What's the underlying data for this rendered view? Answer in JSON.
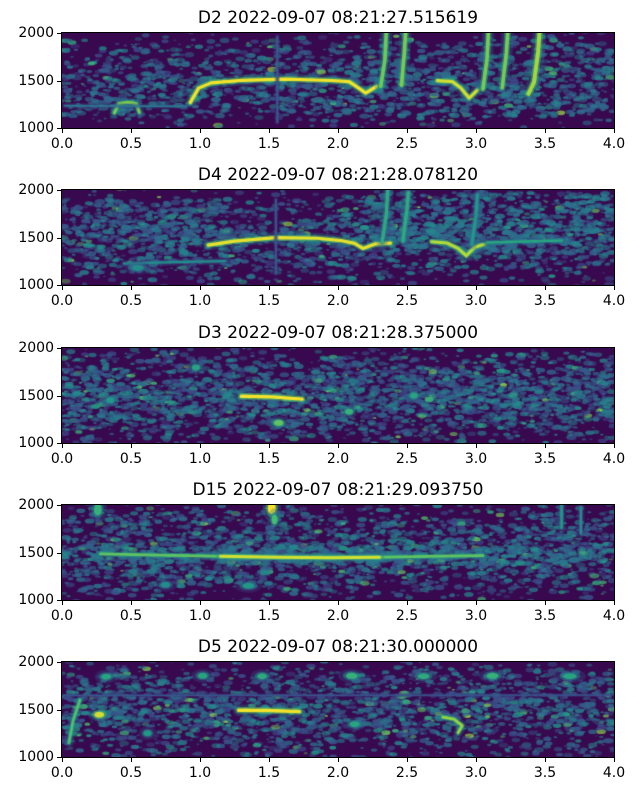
{
  "figure_title": "",
  "colors": {
    "background": "#38094f",
    "colormap": "viridis",
    "low": "#440154",
    "mid": "#21918c",
    "high": "#fde725",
    "axis": "#000000",
    "canvas": "#ffffff"
  },
  "chart_data": [
    {
      "type": "heatmap",
      "title": "D2 2022-09-07 08:21:27.515619",
      "xlabel": "",
      "ylabel": "",
      "xlim": [
        0,
        4
      ],
      "ylim": [
        1000,
        2000
      ],
      "x_ticks": [
        "0.0",
        "0.5",
        "1.0",
        "1.5",
        "2.0",
        "2.5",
        "3.0",
        "3.5",
        "4.0"
      ],
      "y_ticks": [
        "2000",
        "1500",
        "1000"
      ],
      "grid": false,
      "legend": "none",
      "noise": {
        "seed": 11,
        "density": 0.6,
        "regions": [
          {
            "x1": 0,
            "x2": 4,
            "f1": 1120,
            "f2": 1360,
            "n": 260,
            "i": 0.38
          },
          {
            "x1": 2.1,
            "x2": 4,
            "f1": 1350,
            "f2": 1900,
            "n": 150,
            "i": 0.36
          }
        ]
      },
      "features": [
        {
          "kind": "trace",
          "pts": [
            [
              0.38,
              1160
            ],
            [
              0.41,
              1255
            ],
            [
              0.48,
              1272
            ],
            [
              0.54,
              1255
            ],
            [
              0.56,
              1165
            ]
          ],
          "w": 3,
          "i": 0.8
        },
        {
          "kind": "trace",
          "pts": [
            [
              0.93,
              1270
            ],
            [
              0.99,
              1420
            ],
            [
              1.08,
              1475
            ],
            [
              1.3,
              1502
            ],
            [
              1.62,
              1515
            ],
            [
              1.95,
              1500
            ],
            [
              2.08,
              1488
            ],
            [
              2.14,
              1430
            ],
            [
              2.2,
              1368
            ],
            [
              2.28,
              1438
            ]
          ],
          "w": 3.2,
          "i": 1.0
        },
        {
          "kind": "trace",
          "pts": [
            [
              2.31,
              1440
            ],
            [
              2.34,
              1720
            ],
            [
              2.35,
              2010
            ]
          ],
          "w": 3.6,
          "i": 0.78
        },
        {
          "kind": "trace",
          "pts": [
            [
              2.46,
              1450
            ],
            [
              2.48,
              1780
            ],
            [
              2.49,
              2010
            ]
          ],
          "w": 3.6,
          "i": 0.8
        },
        {
          "kind": "trace",
          "pts": [
            [
              2.72,
              1498
            ],
            [
              2.83,
              1488
            ],
            [
              2.89,
              1420
            ],
            [
              2.95,
              1315
            ],
            [
              3.01,
              1398
            ]
          ],
          "w": 3.2,
          "i": 0.95
        },
        {
          "kind": "trace",
          "pts": [
            [
              3.05,
              1410
            ],
            [
              3.08,
              1730
            ],
            [
              3.09,
              2010
            ]
          ],
          "w": 3.6,
          "i": 0.8
        },
        {
          "kind": "trace",
          "pts": [
            [
              3.19,
              1425
            ],
            [
              3.22,
              1790
            ],
            [
              3.23,
              2010
            ]
          ],
          "w": 3.6,
          "i": 0.8
        },
        {
          "kind": "trace",
          "pts": [
            [
              3.38,
              1360
            ],
            [
              3.42,
              1480
            ],
            [
              3.45,
              1800
            ],
            [
              3.46,
              2010
            ]
          ],
          "w": 4,
          "i": 0.88
        },
        {
          "kind": "trace",
          "pts": [
            [
              0.02,
              1235
            ],
            [
              0.9,
              1228
            ]
          ],
          "w": 1.6,
          "i": 0.42
        },
        {
          "kind": "trace",
          "pts": [
            [
              1.56,
              1060
            ],
            [
              1.56,
              1960
            ]
          ],
          "w": 1.6,
          "i": 0.3
        }
      ]
    },
    {
      "type": "heatmap",
      "title": "D4 2022-09-07 08:21:28.078120",
      "xlabel": "",
      "ylabel": "",
      "xlim": [
        0,
        4
      ],
      "ylim": [
        1000,
        2000
      ],
      "x_ticks": [
        "0.0",
        "0.5",
        "1.0",
        "1.5",
        "2.0",
        "2.5",
        "3.0",
        "3.5",
        "4.0"
      ],
      "y_ticks": [
        "2000",
        "1500",
        "1000"
      ],
      "grid": false,
      "legend": "none",
      "noise": {
        "seed": 22,
        "density": 0.78,
        "regions": [
          {
            "x1": 2.2,
            "x2": 4,
            "f1": 1350,
            "f2": 1980,
            "n": 420,
            "i": 0.4
          },
          {
            "x1": 0,
            "x2": 1.2,
            "f1": 1500,
            "f2": 1900,
            "n": 120,
            "i": 0.34
          }
        ]
      },
      "features": [
        {
          "kind": "trace",
          "pts": [
            [
              0.45,
              1225
            ],
            [
              0.8,
              1240
            ],
            [
              1.18,
              1252
            ]
          ],
          "w": 2.2,
          "i": 0.5
        },
        {
          "kind": "trace",
          "pts": [
            [
              1.06,
              1420
            ],
            [
              1.25,
              1462
            ],
            [
              1.55,
              1498
            ],
            [
              1.85,
              1492
            ],
            [
              2.02,
              1468
            ],
            [
              2.12,
              1438
            ],
            [
              2.18,
              1385
            ],
            [
              2.27,
              1432
            ],
            [
              2.38,
              1440
            ]
          ],
          "w": 3.2,
          "i": 0.98
        },
        {
          "kind": "trace",
          "pts": [
            [
              2.32,
              1455
            ],
            [
              2.35,
              1740
            ],
            [
              2.36,
              1990
            ]
          ],
          "w": 3.4,
          "i": 0.62
        },
        {
          "kind": "trace",
          "pts": [
            [
              2.47,
              1460
            ],
            [
              2.5,
              1800
            ],
            [
              2.51,
              1975
            ]
          ],
          "w": 3.4,
          "i": 0.62
        },
        {
          "kind": "trace",
          "pts": [
            [
              2.68,
              1455
            ],
            [
              2.79,
              1442
            ],
            [
              2.87,
              1385
            ],
            [
              2.93,
              1308
            ],
            [
              2.99,
              1398
            ],
            [
              3.06,
              1428
            ]
          ],
          "w": 3.2,
          "i": 0.9
        },
        {
          "kind": "trace",
          "pts": [
            [
              2.97,
              1430
            ],
            [
              3.0,
              1730
            ],
            [
              3.01,
              1950
            ]
          ],
          "w": 3,
          "i": 0.55
        },
        {
          "kind": "trace",
          "pts": [
            [
              3.08,
              1448
            ],
            [
              3.35,
              1458
            ],
            [
              3.62,
              1468
            ]
          ],
          "w": 2.6,
          "i": 0.6
        },
        {
          "kind": "trace",
          "pts": [
            [
              1.55,
              1120
            ],
            [
              1.55,
              1900
            ]
          ],
          "w": 1.6,
          "i": 0.3
        },
        {
          "kind": "blob",
          "x": 0.55,
          "f": 1180,
          "rx": 6,
          "ry": 3,
          "i": 0.5
        }
      ]
    },
    {
      "type": "heatmap",
      "title": "D3 2022-09-07 08:21:28.375000",
      "xlabel": "",
      "ylabel": "",
      "xlim": [
        0,
        4
      ],
      "ylim": [
        1000,
        2000
      ],
      "x_ticks": [
        "0.0",
        "0.5",
        "1.0",
        "1.5",
        "2.0",
        "2.5",
        "3.0",
        "3.5",
        "4.0"
      ],
      "y_ticks": [
        "2000",
        "1500",
        "1000"
      ],
      "grid": false,
      "legend": "none",
      "noise": {
        "seed": 33,
        "density": 1.15,
        "regions": []
      },
      "features": [
        {
          "kind": "trace",
          "pts": [
            [
              1.3,
              1492
            ],
            [
              1.52,
              1486
            ],
            [
              1.74,
              1462
            ]
          ],
          "w": 3.4,
          "i": 1.0
        },
        {
          "kind": "blob",
          "x": 1.57,
          "f": 1212,
          "rx": 5,
          "ry": 3,
          "i": 0.75
        },
        {
          "kind": "blob",
          "x": 0.97,
          "f": 1795,
          "rx": 4,
          "ry": 3,
          "i": 0.6
        },
        {
          "kind": "blob",
          "x": 2.08,
          "f": 1330,
          "rx": 4,
          "ry": 3,
          "i": 0.65
        },
        {
          "kind": "blob",
          "x": 2.55,
          "f": 1500,
          "rx": 4,
          "ry": 3,
          "i": 0.6
        },
        {
          "kind": "blob",
          "x": 0.35,
          "f": 1450,
          "rx": 4,
          "ry": 3,
          "i": 0.55
        }
      ]
    },
    {
      "type": "heatmap",
      "title": "D15 2022-09-07 08:21:29.093750",
      "xlabel": "",
      "ylabel": "",
      "xlim": [
        0,
        4
      ],
      "ylim": [
        1000,
        2000
      ],
      "x_ticks": [
        "0.0",
        "0.5",
        "1.0",
        "1.5",
        "2.0",
        "2.5",
        "3.0",
        "3.5",
        "4.0"
      ],
      "y_ticks": [
        "2000",
        "1500",
        "1000"
      ],
      "grid": false,
      "legend": "none",
      "noise": {
        "seed": 44,
        "density": 0.95,
        "regions": [
          {
            "x1": 0,
            "x2": 4,
            "f1": 1380,
            "f2": 1560,
            "n": 260,
            "i": 0.4
          }
        ]
      },
      "features": [
        {
          "kind": "trace",
          "pts": [
            [
              0.28,
              1485
            ],
            [
              0.7,
              1472
            ],
            [
              1.1,
              1462
            ],
            [
              1.5,
              1452
            ],
            [
              1.95,
              1448
            ],
            [
              2.35,
              1452
            ],
            [
              2.75,
              1462
            ],
            [
              3.05,
              1468
            ]
          ],
          "w": 2.8,
          "i": 0.75
        },
        {
          "kind": "trace",
          "pts": [
            [
              1.15,
              1460
            ],
            [
              1.55,
              1450
            ],
            [
              1.95,
              1446
            ],
            [
              2.3,
              1450
            ]
          ],
          "w": 3,
          "i": 0.95
        },
        {
          "kind": "blob",
          "x": 1.52,
          "f": 1965,
          "rx": 4,
          "ry": 6,
          "i": 1.0
        },
        {
          "kind": "blob",
          "x": 1.54,
          "f": 1845,
          "rx": 3,
          "ry": 5,
          "i": 0.7
        },
        {
          "kind": "blob",
          "x": 0.26,
          "f": 1950,
          "rx": 4,
          "ry": 6,
          "i": 0.65
        },
        {
          "kind": "trace",
          "pts": [
            [
              3.62,
              1760
            ],
            [
              3.62,
              2000
            ]
          ],
          "w": 2.6,
          "i": 0.55
        },
        {
          "kind": "trace",
          "pts": [
            [
              3.76,
              1700
            ],
            [
              3.76,
              1975
            ]
          ],
          "w": 2.2,
          "i": 0.5
        },
        {
          "kind": "blob",
          "x": 1.35,
          "f": 1150,
          "rx": 6,
          "ry": 3,
          "i": 0.55
        },
        {
          "kind": "blob",
          "x": 0.75,
          "f": 1160,
          "rx": 5,
          "ry": 3,
          "i": 0.5
        }
      ]
    },
    {
      "type": "heatmap",
      "title": "D5 2022-09-07 08:21:30.000000",
      "xlabel": "",
      "ylabel": "",
      "xlim": [
        0,
        4
      ],
      "ylim": [
        1000,
        2000
      ],
      "x_ticks": [
        "0.0",
        "0.5",
        "1.0",
        "1.5",
        "2.0",
        "2.5",
        "3.0",
        "3.5",
        "4.0"
      ],
      "y_ticks": [
        "2000",
        "1500",
        "1000"
      ],
      "grid": false,
      "legend": "none",
      "noise": {
        "seed": 55,
        "density": 0.9,
        "regions": []
      },
      "features": [
        {
          "kind": "trace",
          "pts": [
            [
              0.05,
              1150
            ],
            [
              0.08,
              1380
            ],
            [
              0.13,
              1600
            ]
          ],
          "w": 2.8,
          "i": 0.72
        },
        {
          "kind": "blob",
          "x": 0.27,
          "f": 1445,
          "rx": 5,
          "ry": 3,
          "i": 0.95
        },
        {
          "kind": "trace",
          "pts": [
            [
              1.28,
              1492
            ],
            [
              1.5,
              1490
            ],
            [
              1.72,
              1478
            ]
          ],
          "w": 3.4,
          "i": 1.0
        },
        {
          "kind": "trace",
          "pts": [
            [
              2.76,
              1420
            ],
            [
              2.84,
              1398
            ],
            [
              2.9,
              1330
            ],
            [
              2.87,
              1255
            ]
          ],
          "w": 2.8,
          "i": 0.85
        },
        {
          "kind": "blob",
          "x": 0.32,
          "f": 1845,
          "rx": 5,
          "ry": 3,
          "i": 0.6
        },
        {
          "kind": "blob",
          "x": 1.02,
          "f": 1855,
          "rx": 5,
          "ry": 3,
          "i": 0.6
        },
        {
          "kind": "blob",
          "x": 1.45,
          "f": 1850,
          "rx": 5,
          "ry": 3,
          "i": 0.62
        },
        {
          "kind": "blob",
          "x": 2.1,
          "f": 1855,
          "rx": 6,
          "ry": 3,
          "i": 0.65
        },
        {
          "kind": "blob",
          "x": 2.62,
          "f": 1850,
          "rx": 6,
          "ry": 3,
          "i": 0.62
        },
        {
          "kind": "blob",
          "x": 3.12,
          "f": 1855,
          "rx": 6,
          "ry": 3,
          "i": 0.65
        },
        {
          "kind": "blob",
          "x": 3.68,
          "f": 1850,
          "rx": 7,
          "ry": 3,
          "i": 0.6
        },
        {
          "kind": "blob",
          "x": 2.12,
          "f": 1345,
          "rx": 5,
          "ry": 3,
          "i": 0.6
        },
        {
          "kind": "blob",
          "x": 0.62,
          "f": 1250,
          "rx": 4,
          "ry": 3,
          "i": 0.55
        },
        {
          "kind": "trace",
          "pts": [
            [
              0.02,
              1648
            ],
            [
              3.98,
              1652
            ]
          ],
          "w": 1.2,
          "i": 0.28
        }
      ]
    }
  ]
}
